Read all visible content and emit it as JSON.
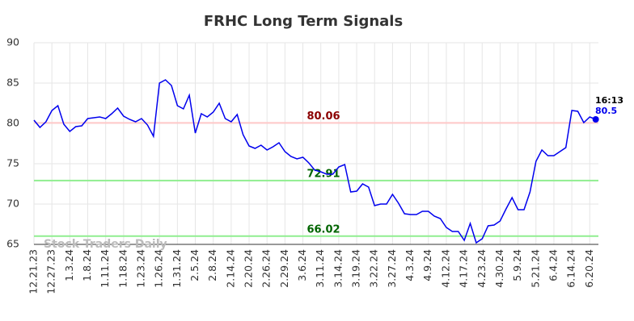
{
  "chart_data": {
    "type": "line",
    "title": "FRHC Long Term Signals",
    "categories": [
      "12.21.23",
      null,
      null,
      "12.27.23",
      null,
      null,
      "1.3.24",
      null,
      null,
      "1.8.24",
      null,
      null,
      "1.11.24",
      null,
      null,
      "1.18.24",
      null,
      null,
      "1.23.24",
      null,
      null,
      "1.26.24",
      null,
      null,
      "1.31.24",
      null,
      null,
      "2.5.24",
      null,
      null,
      "2.8.24",
      null,
      null,
      "2.14.24",
      null,
      null,
      "2.20.24",
      null,
      null,
      "2.26.24",
      null,
      null,
      "2.29.24",
      null,
      null,
      "3.6.24",
      null,
      null,
      "3.11.24",
      null,
      null,
      "3.14.24",
      null,
      null,
      "3.19.24",
      null,
      null,
      "3.22.24",
      null,
      null,
      "3.27.24",
      null,
      null,
      "4.3.24",
      null,
      null,
      "4.9.24",
      null,
      null,
      "4.12.24",
      null,
      null,
      "4.17.24",
      null,
      null,
      "4.23.24",
      null,
      null,
      "4.30.24",
      null,
      null,
      "5.9.24",
      null,
      null,
      "5.21.24",
      null,
      null,
      "6.4.24",
      null,
      null,
      "6.14.24",
      null,
      null,
      "6.20.24",
      null
    ],
    "values": [
      80.4,
      79.5,
      80.2,
      81.6,
      82.2,
      79.9,
      79.0,
      79.6,
      79.7,
      80.6,
      80.7,
      80.8,
      80.6,
      81.2,
      81.9,
      80.9,
      80.5,
      80.2,
      80.6,
      79.8,
      78.4,
      85.0,
      85.4,
      84.7,
      82.2,
      81.8,
      83.5,
      78.8,
      81.2,
      80.8,
      81.4,
      82.5,
      80.6,
      80.2,
      81.1,
      78.6,
      77.2,
      76.9,
      77.3,
      76.7,
      77.1,
      77.6,
      76.5,
      75.9,
      75.6,
      75.8,
      75.1,
      74.2,
      74.0,
      73.7,
      73.7,
      74.6,
      74.9,
      71.5,
      71.6,
      72.5,
      72.1,
      69.8,
      70.0,
      70.0,
      71.2,
      70.1,
      68.8,
      68.7,
      68.7,
      69.1,
      69.1,
      68.5,
      68.2,
      67.1,
      66.6,
      66.6,
      65.5,
      67.6,
      65.2,
      65.7,
      67.3,
      67.4,
      67.9,
      69.4,
      70.8,
      69.3,
      69.3,
      71.5,
      75.3,
      76.7,
      76.0,
      76.0,
      76.5,
      77.0,
      81.6,
      81.5,
      80.1,
      80.8,
      80.5
    ],
    "color": "#0000ee",
    "ylim": [
      65,
      90
    ],
    "yticks": [
      65,
      70,
      75,
      80,
      85,
      90
    ],
    "grid": true,
    "hlines": [
      {
        "value": 80.06,
        "color": "#ffc8c8",
        "label_color": "#8b0000"
      },
      {
        "value": 72.91,
        "color": "#90ee90",
        "label_color": "#006400"
      },
      {
        "value": 66.02,
        "color": "#90ee90",
        "label_color": "#006400"
      }
    ],
    "last_label": "16:13",
    "watermark": "Stock Traders Daily"
  }
}
